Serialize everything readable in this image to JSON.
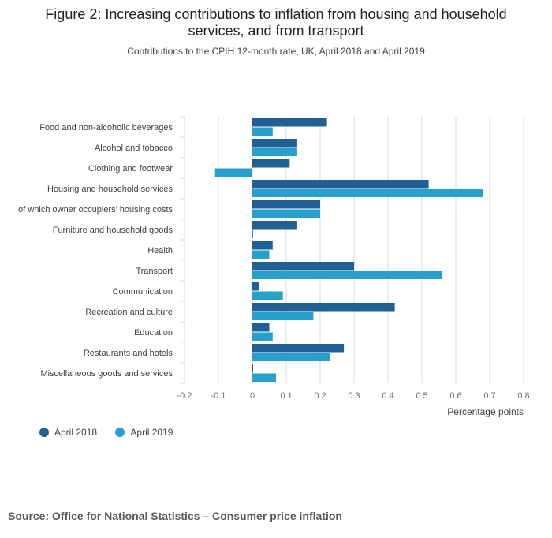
{
  "page": {
    "title": "Figure 2: Increasing contributions to inflation from housing and household services, and from transport",
    "subtitle": "Contributions to the CPIH 12-month rate, UK, April 2018 and April 2019",
    "source": "Source: Office for National Statistics – Consumer price inflation"
  },
  "colors": {
    "series1": "#206095",
    "series2": "#27a0cc",
    "grid": "#d9d9d9"
  },
  "chart_data": {
    "type": "bar",
    "orientation": "horizontal",
    "title": "Figure 2: Increasing contributions to inflation from housing and household services, and from transport",
    "subtitle": "Contributions to the CPIH 12-month rate, UK, April 2018 and April 2019",
    "xlabel": "Percentage points",
    "ylabel": "",
    "xlim": [
      -0.2,
      0.8
    ],
    "xticks": [
      -0.2,
      -0.1,
      0,
      0.1,
      0.2,
      0.3,
      0.4,
      0.5,
      0.6,
      0.7,
      0.8
    ],
    "xtick_labels": [
      "-0.2",
      "-0.1",
      "0",
      "0.1",
      "0.2",
      "0.3",
      "0.4",
      "0.5",
      "0.6",
      "0.7",
      "0.8"
    ],
    "grid": true,
    "legend_position": "bottom-left",
    "categories": [
      "Food and non-alcoholic beverages",
      "Alcohol and tobacco",
      "Clothing and footwear",
      "Housing and household services",
      "of which owner occupiers’ housing costs",
      "Furniture and household goods",
      "Health",
      "Transport",
      "Communication",
      "Recreation and culture",
      "Education",
      "Restaurants and hotels",
      "Miscellaneous goods and services"
    ],
    "series": [
      {
        "name": "April 2018",
        "values": [
          0.22,
          0.13,
          0.11,
          0.52,
          0.2,
          0.13,
          0.06,
          0.3,
          0.02,
          0.42,
          0.05,
          0.27,
          0.0
        ]
      },
      {
        "name": "April 2019",
        "values": [
          0.06,
          0.13,
          -0.11,
          0.68,
          0.2,
          0.0,
          0.05,
          0.56,
          0.09,
          0.18,
          0.06,
          0.23,
          0.07
        ]
      }
    ]
  }
}
